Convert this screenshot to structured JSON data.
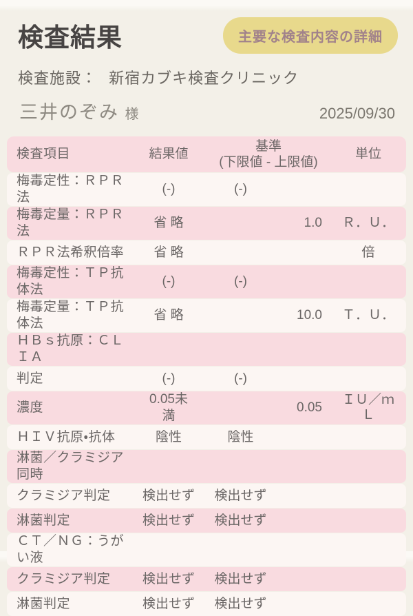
{
  "header": {
    "title": "検査結果",
    "detail_button_label": "主要な検査内容の詳細",
    "facility_label": "検査施設：",
    "facility_name": "新宿カブキ検査クリニック",
    "patient_name": "三井のぞみ",
    "honorific": "様",
    "report_date": "2025/09/30"
  },
  "colors": {
    "page_bg": "#f3f0e8",
    "row_pink": "#f9dbe0",
    "row_light": "#fcf6f3",
    "button_bg": "#e8d98c",
    "button_text": "#a1828b",
    "title_text": "#474443"
  },
  "table": {
    "headers": {
      "item": "検査項目",
      "result": "結果値",
      "standard": "基準\n(下限値 - 上限値)",
      "unit": "単位"
    },
    "rows": [
      {
        "item": "梅毒定性：ＲＰＲ法",
        "result": "(-)",
        "standard": "(-)",
        "max": "",
        "unit": ""
      },
      {
        "item": "梅毒定量：ＲＰＲ法",
        "result": "省 略",
        "standard": "",
        "max": "1.0",
        "unit": "Ｒ．Ｕ．"
      },
      {
        "item": "ＲＰＲ法希釈倍率",
        "result": "省 略",
        "standard": "",
        "max": "",
        "unit": "倍"
      },
      {
        "item": "梅毒定性：ＴＰ抗体法",
        "result": "(-)",
        "standard": "(-)",
        "max": "",
        "unit": ""
      },
      {
        "item": "梅毒定量：ＴＰ抗体法",
        "result": "省 略",
        "standard": "",
        "max": "10.0",
        "unit": "Ｔ．Ｕ．"
      },
      {
        "item": "ＨＢｓ抗原：ＣＬＩＡ",
        "result": "",
        "standard": "",
        "max": "",
        "unit": ""
      },
      {
        "item": "判定",
        "result": "(-)",
        "standard": "(-)",
        "max": "",
        "unit": ""
      },
      {
        "item": "濃度",
        "result": "0.05未\n満",
        "standard": "",
        "max": "0.05",
        "unit": "ＩＵ／ｍ\nＬ"
      },
      {
        "item": "ＨＩＶ抗原・抗体",
        "result": "陰性",
        "standard": "陰性",
        "max": "",
        "unit": ""
      },
      {
        "item": "淋菌／クラミジア同時",
        "result": "",
        "standard": "",
        "max": "",
        "unit": ""
      },
      {
        "item": "クラミジア判定",
        "result": "検出せず",
        "standard": "検出せず",
        "max": "",
        "unit": ""
      },
      {
        "item": "淋菌判定",
        "result": "検出せず",
        "standard": "検出せず",
        "max": "",
        "unit": ""
      },
      {
        "item": "ＣＴ／ＮＧ：うがい液",
        "result": "",
        "standard": "",
        "max": "",
        "unit": ""
      },
      {
        "item": "クラミジア判定",
        "result": "検出せず",
        "standard": "検出せず",
        "max": "",
        "unit": ""
      },
      {
        "item": "淋菌判定",
        "result": "検出せず",
        "standard": "検出せず",
        "max": "",
        "unit": ""
      }
    ]
  }
}
